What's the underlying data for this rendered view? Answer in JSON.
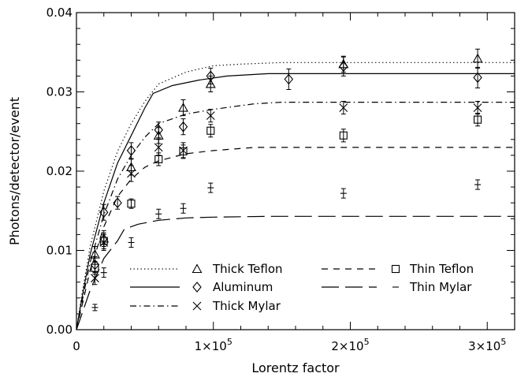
{
  "chart_data": {
    "type": "scatter",
    "title": "",
    "xlabel": "Lorentz factor",
    "ylabel": "Photons/detector/event",
    "xlim": [
      0,
      320000
    ],
    "ylim": [
      0,
      0.04
    ],
    "x_ticks": [
      {
        "value": 0,
        "label": "0",
        "sup": ""
      },
      {
        "value": 100000,
        "label": "1×10",
        "sup": "5"
      },
      {
        "value": 200000,
        "label": "2×10",
        "sup": "5"
      },
      {
        "value": 300000,
        "label": "3×10",
        "sup": "5"
      }
    ],
    "y_ticks": [
      {
        "value": 0,
        "label": "0.00"
      },
      {
        "value": 0.01,
        "label": "0.01"
      },
      {
        "value": 0.02,
        "label": "0.02"
      },
      {
        "value": 0.03,
        "label": "0.03"
      },
      {
        "value": 0.04,
        "label": "0.04"
      }
    ],
    "grid": false,
    "legend_position": "bottom-center",
    "series": [
      {
        "name": "Thick Teflon",
        "marker": "triangle",
        "line_style": "dotted",
        "points": [
          [
            13500,
            0.0095,
            0.001
          ],
          [
            20000,
            0.0115,
            0.001
          ],
          [
            40000,
            0.0205,
            0.001
          ],
          [
            60000,
            0.0245,
            0.001
          ],
          [
            78000,
            0.028,
            0.001
          ],
          [
            98000,
            0.031,
            0.001
          ],
          [
            195000,
            0.0335,
            0.001
          ],
          [
            293000,
            0.0342,
            0.0012
          ]
        ],
        "curve": [
          [
            0,
            0
          ],
          [
            4000,
            0.0045
          ],
          [
            10000,
            0.0105
          ],
          [
            20000,
            0.0175
          ],
          [
            30000,
            0.0225
          ],
          [
            40000,
            0.026
          ],
          [
            50000,
            0.0288
          ],
          [
            60000,
            0.031
          ],
          [
            80000,
            0.0325
          ],
          [
            100000,
            0.0333
          ],
          [
            120000,
            0.0335
          ],
          [
            150000,
            0.0337
          ],
          [
            320000,
            0.0337
          ]
        ]
      },
      {
        "name": "Aluminum",
        "marker": "diamond",
        "line_style": "solid",
        "points": [
          [
            13500,
            0.0082,
            0.001
          ],
          [
            20000,
            0.0148,
            0.001
          ],
          [
            30000,
            0.016,
            0.0008
          ],
          [
            40000,
            0.0226,
            0.001
          ],
          [
            60000,
            0.0252,
            0.001
          ],
          [
            78000,
            0.0256,
            0.001
          ],
          [
            98000,
            0.032,
            0.001
          ],
          [
            155000,
            0.0316,
            0.0013
          ],
          [
            195000,
            0.0332,
            0.0012
          ],
          [
            293000,
            0.0318,
            0.0013
          ]
        ],
        "curve": [
          [
            0,
            0
          ],
          [
            4000,
            0.004
          ],
          [
            10000,
            0.0095
          ],
          [
            20000,
            0.016
          ],
          [
            30000,
            0.021
          ],
          [
            40000,
            0.0245
          ],
          [
            50000,
            0.028
          ],
          [
            56000,
            0.0298
          ],
          [
            70000,
            0.0308
          ],
          [
            90000,
            0.0315
          ],
          [
            110000,
            0.032
          ],
          [
            140000,
            0.0323
          ],
          [
            320000,
            0.0323
          ]
        ]
      },
      {
        "name": "Thick Mylar",
        "marker": "x",
        "line_style": "dash-dot",
        "points": [
          [
            13500,
            0.0065,
            0.0008
          ],
          [
            20000,
            0.011,
            0.001
          ],
          [
            40000,
            0.0197,
            0.001
          ],
          [
            60000,
            0.023,
            0.001
          ],
          [
            78000,
            0.0226,
            0.001
          ],
          [
            98000,
            0.027,
            0.0008
          ],
          [
            195000,
            0.028,
            0.0008
          ],
          [
            293000,
            0.028,
            0.0008
          ]
        ],
        "curve": [
          [
            0,
            0
          ],
          [
            4000,
            0.0035
          ],
          [
            10000,
            0.0085
          ],
          [
            20000,
            0.0145
          ],
          [
            30000,
            0.019
          ],
          [
            40000,
            0.022
          ],
          [
            50000,
            0.0243
          ],
          [
            60000,
            0.026
          ],
          [
            80000,
            0.0272
          ],
          [
            100000,
            0.0278
          ],
          [
            130000,
            0.0285
          ],
          [
            150000,
            0.0287
          ],
          [
            320000,
            0.0287
          ]
        ]
      },
      {
        "name": "Thin Teflon",
        "marker": "square",
        "line_style": "dashed",
        "points": [
          [
            13500,
            0.0078,
            0.0008
          ],
          [
            20000,
            0.0112,
            0.001
          ],
          [
            40000,
            0.0159,
            0.0006
          ],
          [
            60000,
            0.0215,
            0.0008
          ],
          [
            78000,
            0.0225,
            0.0008
          ],
          [
            98000,
            0.0251,
            0.0008
          ],
          [
            195000,
            0.0245,
            0.0008
          ],
          [
            293000,
            0.0265,
            0.0008
          ]
        ],
        "curve": [
          [
            0,
            0
          ],
          [
            4000,
            0.003
          ],
          [
            10000,
            0.0075
          ],
          [
            20000,
            0.013
          ],
          [
            30000,
            0.0168
          ],
          [
            40000,
            0.019
          ],
          [
            50000,
            0.0205
          ],
          [
            60000,
            0.0213
          ],
          [
            80000,
            0.0222
          ],
          [
            100000,
            0.0226
          ],
          [
            130000,
            0.023
          ],
          [
            320000,
            0.023
          ]
        ]
      },
      {
        "name": "Thin Mylar",
        "marker": "plus",
        "line_style": "long-dash",
        "points": [
          [
            13500,
            0.0028,
            0.0004
          ],
          [
            20000,
            0.0072,
            0.0006
          ],
          [
            40000,
            0.011,
            0.0006
          ],
          [
            60000,
            0.0146,
            0.0006
          ],
          [
            78000,
            0.0153,
            0.0006
          ],
          [
            98000,
            0.0179,
            0.0006
          ],
          [
            195000,
            0.0172,
            0.0006
          ],
          [
            293000,
            0.0183,
            0.0006
          ]
        ],
        "curve": [
          [
            0,
            0
          ],
          [
            4000,
            0.002
          ],
          [
            10000,
            0.005
          ],
          [
            20000,
            0.009
          ],
          [
            30000,
            0.0112
          ],
          [
            35000,
            0.0127
          ],
          [
            45000,
            0.0133
          ],
          [
            60000,
            0.0138
          ],
          [
            80000,
            0.0141
          ],
          [
            100000,
            0.0142
          ],
          [
            140000,
            0.0143
          ],
          [
            320000,
            0.0143
          ]
        ]
      }
    ]
  }
}
